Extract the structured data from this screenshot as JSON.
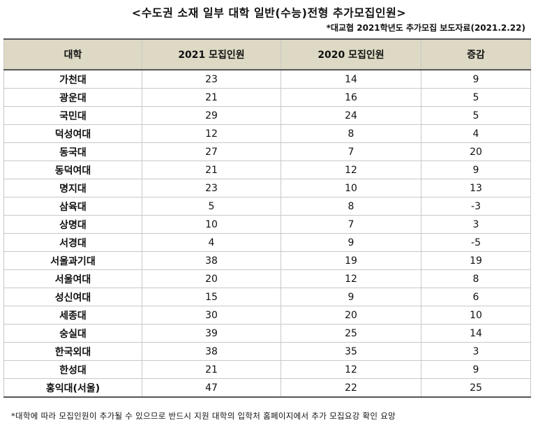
{
  "title": "<수도권 소재 일부 대학 일반(수능)전형 추가모집인원>",
  "source": "*대교협 2021학년도 추가모집 보도자료(2021.2.22)",
  "table": {
    "headers": [
      "대학",
      "2021 모집인원",
      "2020 모집인원",
      "증감"
    ],
    "rows": [
      [
        "가천대",
        "23",
        "14",
        "9"
      ],
      [
        "광운대",
        "21",
        "16",
        "5"
      ],
      [
        "국민대",
        "29",
        "24",
        "5"
      ],
      [
        "덕성여대",
        "12",
        "8",
        "4"
      ],
      [
        "동국대",
        "27",
        "7",
        "20"
      ],
      [
        "동덕여대",
        "21",
        "12",
        "9"
      ],
      [
        "명지대",
        "23",
        "10",
        "13"
      ],
      [
        "삼육대",
        "5",
        "8",
        "-3"
      ],
      [
        "상명대",
        "10",
        "7",
        "3"
      ],
      [
        "서경대",
        "4",
        "9",
        "-5"
      ],
      [
        "서울과기대",
        "38",
        "19",
        "19"
      ],
      [
        "서울여대",
        "20",
        "12",
        "8"
      ],
      [
        "성신여대",
        "15",
        "9",
        "6"
      ],
      [
        "세종대",
        "30",
        "20",
        "10"
      ],
      [
        "숭실대",
        "39",
        "25",
        "14"
      ],
      [
        "한국외대",
        "38",
        "35",
        "3"
      ],
      [
        "한성대",
        "21",
        "12",
        "9"
      ],
      [
        "홍익대(서울)",
        "47",
        "22",
        "25"
      ]
    ]
  },
  "footnote": "*대학에 따라 모집인원이 추가될 수 있으므로 반드시 지원 대학의 입학처 홈페이지에서 추가 모집요강 확인 요망"
}
